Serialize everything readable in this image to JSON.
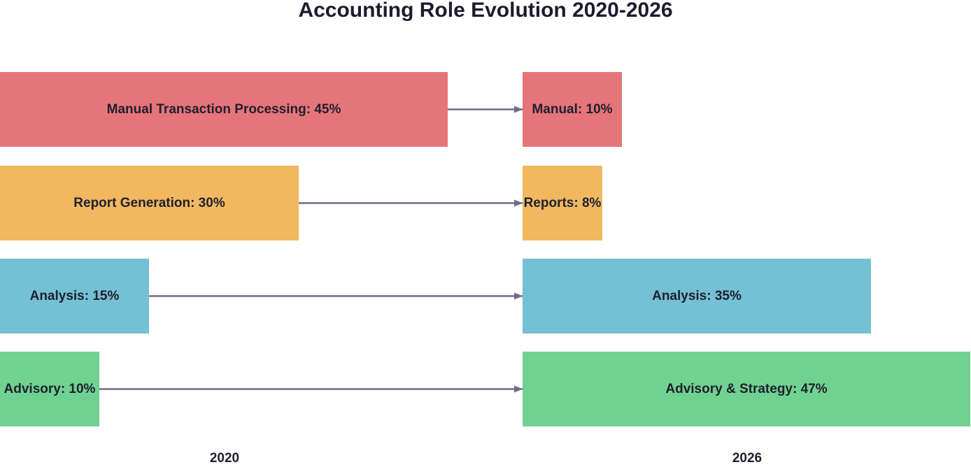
{
  "title": "Accounting Role Evolution 2020-2026",
  "years": {
    "start": "2020",
    "end": "2026"
  },
  "rows": [
    {
      "start_label": "Manual Transaction Processing: 45%",
      "end_label": "Manual: 10%",
      "start_value": 45,
      "end_value": 10,
      "color": "#e6757a"
    },
    {
      "start_label": "Report Generation: 30%",
      "end_label": "Reports: 8%",
      "start_value": 30,
      "end_value": 8,
      "color": "#f1b860"
    },
    {
      "start_label": "Analysis: 15%",
      "end_label": "Analysis: 35%",
      "start_value": 15,
      "end_value": 35,
      "color": "#74c0d4"
    },
    {
      "start_label": "Advisory: 10%",
      "end_label": "Advisory & Strategy: 47%",
      "start_value": 10,
      "end_value": 47,
      "color": "#70d290"
    }
  ],
  "arrow_color": "#6c6d88"
}
